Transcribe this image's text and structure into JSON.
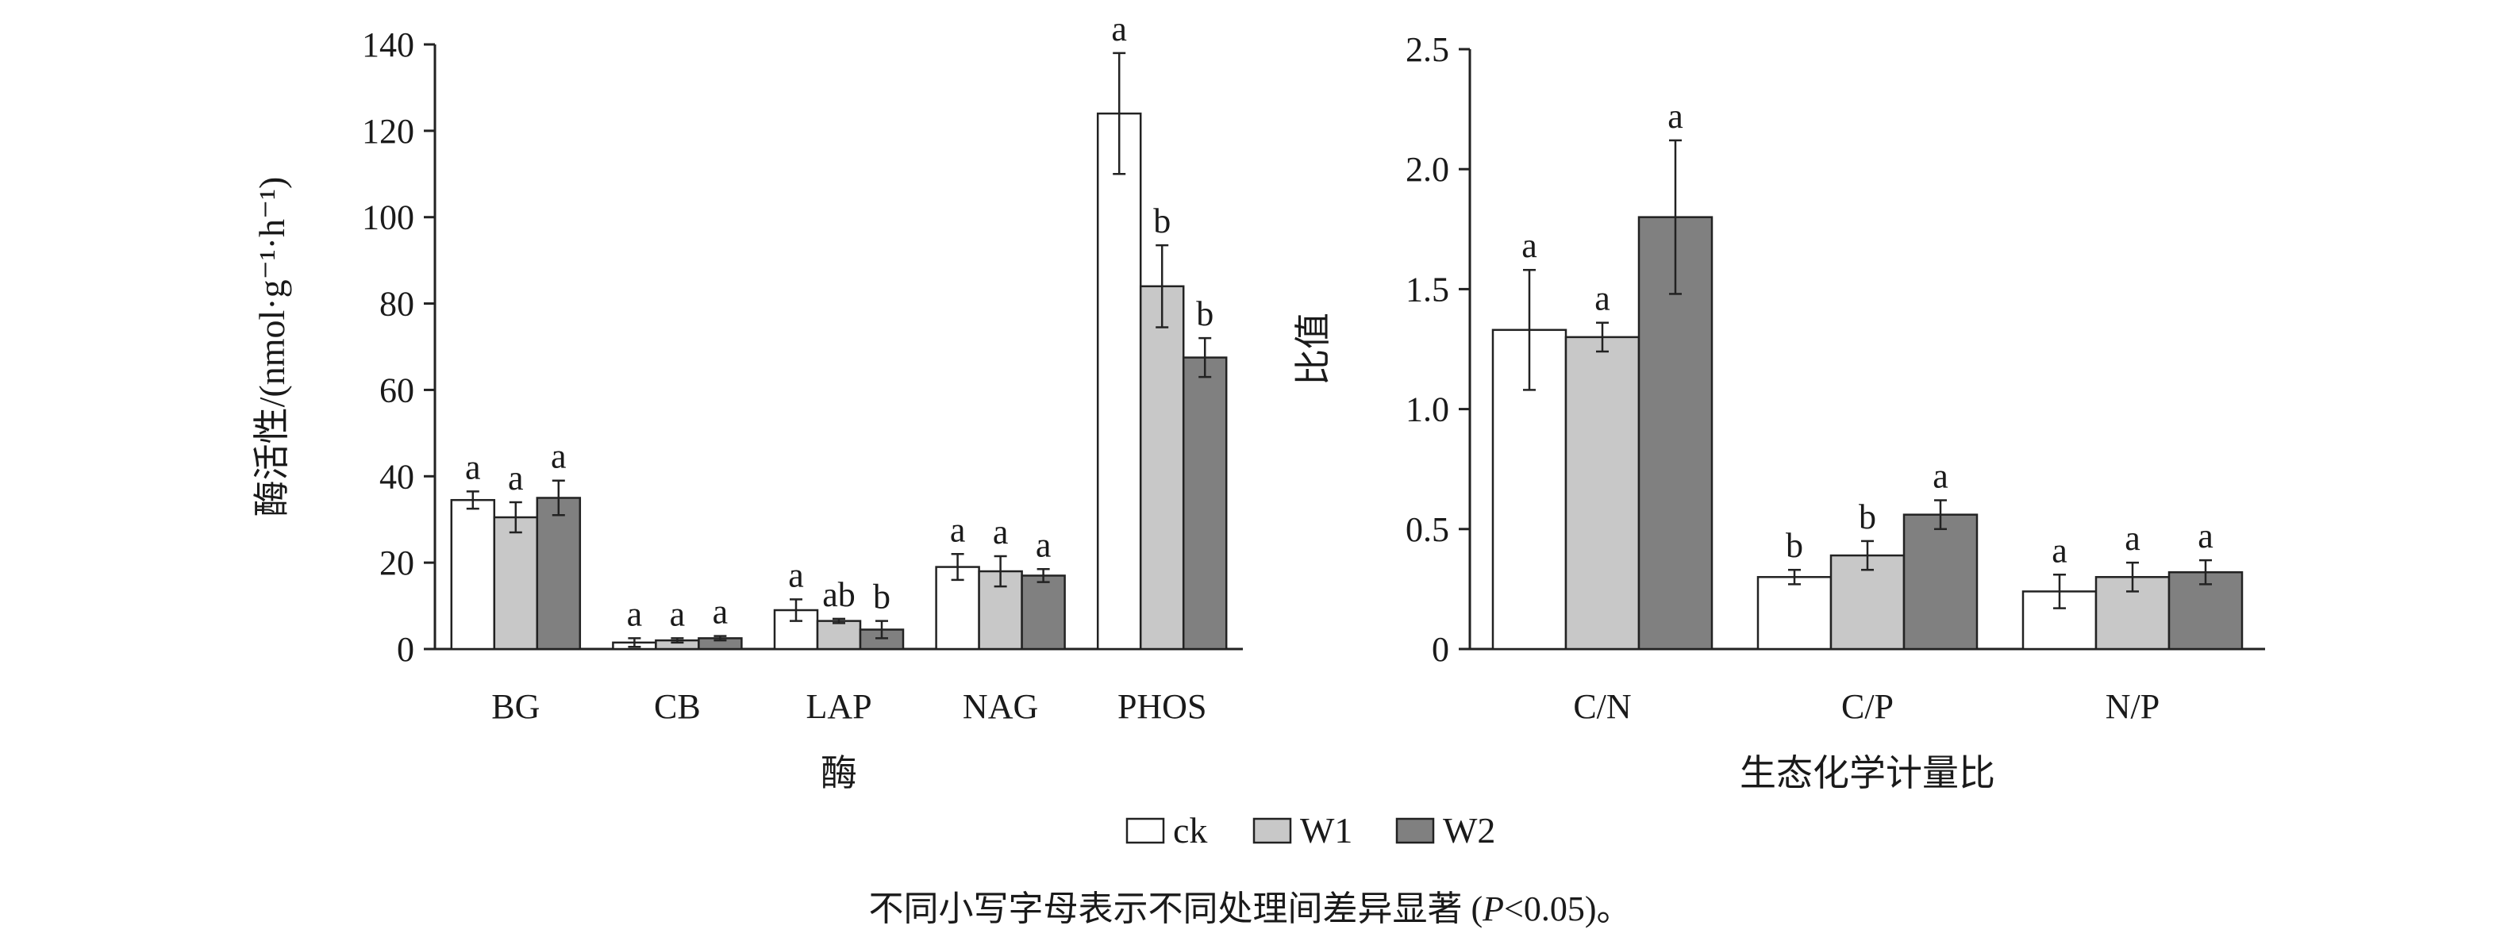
{
  "colors": {
    "ck": "#ffffff",
    "W1": "#c8c8c8",
    "W2": "#808080",
    "stroke": "#222222"
  },
  "legend": [
    {
      "key": "ck",
      "label": "ck"
    },
    {
      "key": "W1",
      "label": "W1"
    },
    {
      "key": "W2",
      "label": "W2"
    }
  ],
  "caption": {
    "main": "不同小写字母表示不同处理间差异显著 (",
    "p": "P",
    "rest": "<0.05)。"
  },
  "chart_data": [
    {
      "type": "bar",
      "title": "",
      "xlabel": "酶",
      "ylabel": "酶活性/(nmol·g⁻¹·h⁻¹)",
      "ylim": [
        0,
        140
      ],
      "yticks": [
        0,
        20,
        40,
        60,
        80,
        100,
        120,
        140
      ],
      "ytick_labels": [
        "0",
        "20",
        "40",
        "60",
        "80",
        "100",
        "120",
        "140"
      ],
      "categories": [
        "BG",
        "CB",
        "LAP",
        "NAG",
        "PHOS"
      ],
      "series": [
        {
          "name": "ck",
          "values": [
            34.5,
            1.5,
            9,
            19,
            124
          ],
          "errors": [
            2,
            1,
            2.5,
            3,
            14
          ],
          "labels": [
            "a",
            "a",
            "a",
            "a",
            "a"
          ]
        },
        {
          "name": "W1",
          "values": [
            30.5,
            2,
            6.5,
            18,
            84
          ],
          "errors": [
            3.5,
            0.5,
            0.5,
            3.5,
            9.5
          ],
          "labels": [
            "a",
            "a",
            "ab",
            "a",
            "b"
          ]
        },
        {
          "name": "W2",
          "values": [
            35,
            2.5,
            4.5,
            17,
            67.5
          ],
          "errors": [
            4,
            0.5,
            2,
            1.5,
            4.5
          ],
          "labels": [
            "a",
            "a",
            "b",
            "a",
            "b"
          ]
        }
      ]
    },
    {
      "type": "bar",
      "title": "",
      "xlabel": "生态化学计量比",
      "ylabel": "比值",
      "ylim": [
        0,
        2.5
      ],
      "yticks": [
        0,
        0.5,
        1.0,
        1.5,
        2.0,
        2.5
      ],
      "ytick_labels": [
        "0",
        "0.5",
        "1.0",
        "1.5",
        "2.0",
        "2.5"
      ],
      "categories": [
        "C/N",
        "C/P",
        "N/P"
      ],
      "series": [
        {
          "name": "ck",
          "values": [
            1.33,
            0.3,
            0.24
          ],
          "errors": [
            0.25,
            0.03,
            0.07
          ],
          "labels": [
            "a",
            "b",
            "a"
          ]
        },
        {
          "name": "W1",
          "values": [
            1.3,
            0.39,
            0.3
          ],
          "errors": [
            0.06,
            0.06,
            0.06
          ],
          "labels": [
            "a",
            "b",
            "a"
          ]
        },
        {
          "name": "W2",
          "values": [
            1.8,
            0.56,
            0.32
          ],
          "errors": [
            0.32,
            0.06,
            0.05
          ],
          "labels": [
            "a",
            "a",
            "a"
          ]
        }
      ]
    }
  ]
}
